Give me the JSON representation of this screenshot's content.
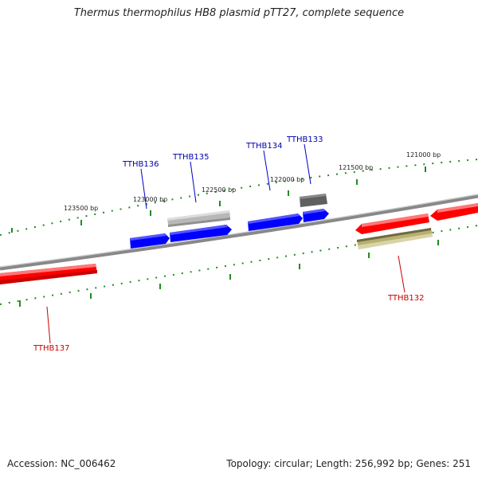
{
  "title": "Thermus thermophilus HB8 plasmid pTT27, complete sequence",
  "footer": {
    "accession": "Accession: NC_006462",
    "topology": "Topology: circular; Length: 256,992 bp; Genes: 251"
  },
  "colors": {
    "forward_strand": "#0000ff",
    "reverse_strand": "#ff0000",
    "gray_gene": "#b0b0b0",
    "dark_gene": "#606060",
    "olive_gene": "#b8b070",
    "tick": "#228b22",
    "backbone": "#808080"
  },
  "bp_labels": [
    "123500 bp",
    "123000 bp",
    "122500 bp",
    "122000 bp",
    "121500 bp",
    "121000 bp"
  ],
  "gene_labels": [
    {
      "text": "TTHB136",
      "color": "#0000aa"
    },
    {
      "text": "TTHB135",
      "color": "#0000aa"
    },
    {
      "text": "TTHB134",
      "color": "#0000aa"
    },
    {
      "text": "TTHB133",
      "color": "#0000aa"
    },
    {
      "text": "TTHB132",
      "color": "#cc0000"
    },
    {
      "text": "TTHB137",
      "color": "#cc0000"
    }
  ]
}
